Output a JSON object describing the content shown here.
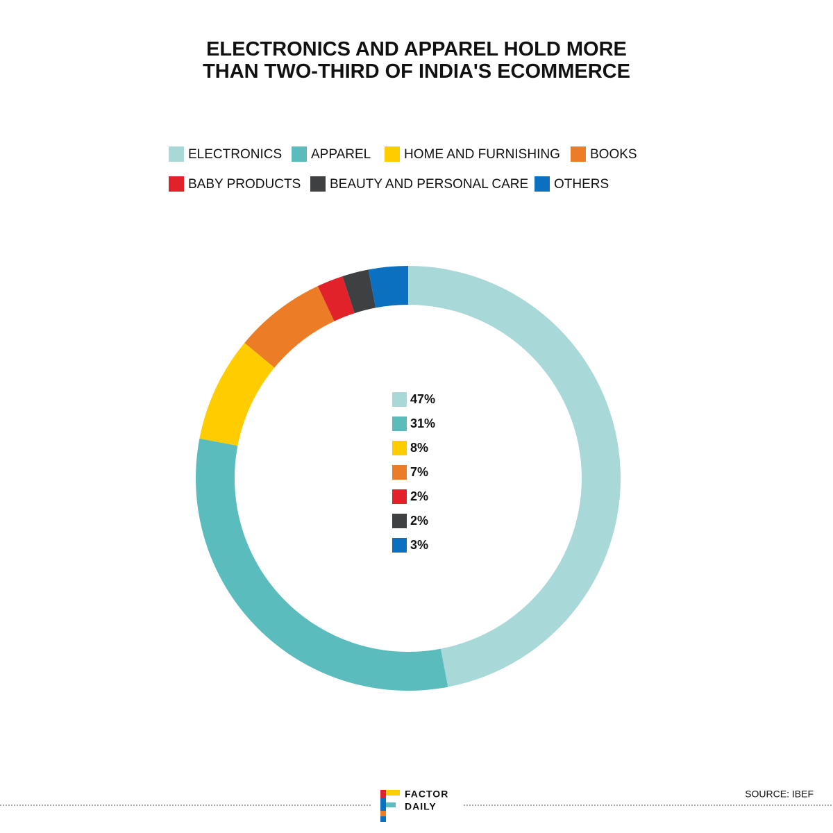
{
  "chart_data": {
    "type": "pie",
    "donut": true,
    "title": "ELECTRONICS AND APPAREL HOLD MORE THAN TWO-THIRD OF INDIA'S ECOMMERCE",
    "categories": [
      "ELECTRONICS",
      "APPAREL",
      "HOME AND FURNISHING",
      "BOOKS",
      "BABY PRODUCTS",
      "BEAUTY AND PERSONAL CARE",
      "OTHERS"
    ],
    "values": [
      47,
      31,
      8,
      7,
      2,
      2,
      3
    ],
    "value_labels": [
      "47%",
      "31%",
      "8%",
      "7%",
      "2%",
      "2%",
      "3%"
    ],
    "colors": [
      "#a8d8d8",
      "#5bbcbd",
      "#ffcc00",
      "#ec7c26",
      "#e2222b",
      "#3f4042",
      "#0b70bf"
    ]
  },
  "footer": {
    "logo": [
      "FACTOR",
      "DAILY"
    ],
    "source": "SOURCE: IBEF"
  }
}
